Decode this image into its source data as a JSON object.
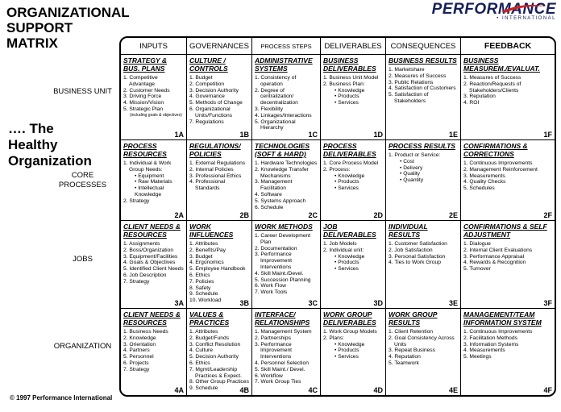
{
  "header": {
    "title_lines": [
      "ORGANIZATIONAL",
      "SUPPORT",
      "MATRIX"
    ],
    "subtitle_lines": [
      "…. The",
      "Healthy",
      "Organization"
    ],
    "logo": "PERFORMANCE",
    "logo_sub": "INTERNATIONAL",
    "copyright": "© 1997  Performance International"
  },
  "columns": [
    "INPUTS",
    "GOVERNANCES",
    "PROCESS STEPS",
    "DELIVERABLES",
    "CONSEQUENCES",
    "FEEDBACK"
  ],
  "rows": [
    {
      "label": "BUSINESS UNIT",
      "cells": [
        {
          "title": "STRATEGY & BUS. PLANS",
          "code": "1A",
          "items": [
            "1. Competitive Advantage",
            "2. Customer Needs",
            "3. Driving Force",
            "4. Mission/Vision",
            {
              "text": "5. Strategic Plan",
              "note": "(including goals & objectives)"
            }
          ]
        },
        {
          "title": "CULTURE / CONTROLS",
          "code": "1B",
          "items": [
            "1. Budget",
            "2. Competition",
            "3. Decision Authority",
            "4. Governance",
            "5. Methods of Change",
            "6. Organizational Units/Functions",
            "7. Regulations"
          ]
        },
        {
          "title": "ADMINISTRATIVE SYSTEMS",
          "code": "1C",
          "items": [
            "1. Consistency of operation",
            "2. Degree of centralization/ decentralization",
            "3. Flexibility",
            "4. Linkages/Interactions",
            "5. Organizational Hierarchy"
          ]
        },
        {
          "title": "BUSINESS DELIVERABLES",
          "code": "1D",
          "items": [
            "1. Business Unit Model",
            {
              "text": "2. Business Plan:",
              "sub": [
                "Knowledge",
                "Products",
                "Services"
              ]
            }
          ]
        },
        {
          "title": "BUSINESS RESULTS",
          "code": "1E",
          "items": [
            "1. Marketshare",
            "2. Measures of Success",
            "3. Public Relations",
            "4. Satisfaction of Customers",
            "5. Satisfaction of Stakeholders"
          ]
        },
        {
          "title": "BUSINESS MEASUREM./EVALUAT.",
          "code": "1F",
          "items": [
            "1. Measures of Success",
            "2. Reaction/Requests of Stakeholders/Clients",
            "3. Reputation",
            "4. ROI"
          ]
        }
      ]
    },
    {
      "label": "CORE PROCESSES",
      "cells": [
        {
          "title": "PROCESS RESOURCES",
          "code": "2A",
          "items": [
            {
              "text": "1. Individual & Work Group Needs:",
              "sub": [
                "Equipment",
                "Raw Materials",
                "Intellectual Knowledge"
              ]
            },
            "2. Strategy"
          ]
        },
        {
          "title": "REGULATIONS/ POLICIES",
          "code": "2B",
          "items": [
            "1. External Regulations",
            "2. Internal Policies",
            "3. Professional Ethics",
            "4. Professional Standards"
          ]
        },
        {
          "title": "TECHNOLOGIES (SOFT & HARD)",
          "code": "2C",
          "items": [
            "1. Hardware Technologies",
            "2. Knowledge Transfer Mechanisms",
            "3. Management Facilitation",
            "4. Software",
            "5. Systems Approach",
            "6. Schedule"
          ]
        },
        {
          "title": "PROCESS DELIVERABLES",
          "code": "2D",
          "items": [
            "1. Core Process Model",
            {
              "text": "2. Process:",
              "sub": [
                "Knowledge",
                "Products",
                "Services"
              ]
            }
          ]
        },
        {
          "title": "PROCESS RESULTS",
          "code": "2E",
          "items": [
            {
              "text": "1. Product or Service:",
              "sub": [
                "Cost",
                "Delivery",
                "Quality",
                "Quantity"
              ]
            }
          ]
        },
        {
          "title": "CONFIRMATIONS & CORRECTIONS",
          "code": "2F",
          "items": [
            "1. Continuous Improvements",
            "2. Management Reinforcement",
            "3. Measurements",
            "4. Quality Checks",
            "5. Schedules"
          ]
        }
      ]
    },
    {
      "label": "JOBS",
      "cells": [
        {
          "title": "CLIENT NEEDS & RESOURCES",
          "code": "3A",
          "items": [
            "1. Assignments",
            "2. Boss/Organization",
            "3. Equipment/Facilities",
            "4. Goals & Objectives",
            "5. Identified Client Needs",
            "6. Job Description",
            "7. Strategy"
          ]
        },
        {
          "title": "WORK INFLUENCES",
          "code": "3B",
          "items": [
            "1. Attributes",
            "2. Benefits/Pay",
            "3. Budget",
            "4. Ergonomics",
            "5. Employee Handbook",
            "6. Ethics",
            "7. Policies",
            "8. Safety",
            "9. Schedule",
            "10. Workload"
          ]
        },
        {
          "title": "WORK METHODS",
          "code": "3C",
          "items": [
            "1. Career Development Plan",
            "2. Documentation",
            "3. Performance Improvement Interventions",
            "4. Skill Maint./Devel.",
            "5. Succession Planning",
            "6. Work Flow",
            "7. Work Tools"
          ]
        },
        {
          "title": "JOB DELIVERABLES",
          "code": "3D",
          "items": [
            "1. Job Models",
            {
              "text": "2. Individual unit:",
              "sub": [
                "Knowledge",
                "Products",
                "Services"
              ]
            }
          ]
        },
        {
          "title": "INDIVIDUAL RESULTS",
          "code": "3E",
          "items": [
            "1. Customer Satisfaction",
            "2. Job Satisfaction",
            "3. Personal Satisfaction",
            "4. Ties to Work Group"
          ]
        },
        {
          "title": "CONFIRMATIONS & SELF ADJUSTMENT",
          "code": "3F",
          "items": [
            "1. Dialogue",
            "2. Internal Client Evaluations",
            "3. Performance Appraisal",
            "4. Rewards & Recognition",
            "5. Turnover"
          ]
        }
      ]
    },
    {
      "label": "ORGANIZATION",
      "cells": [
        {
          "title": "CLIENT NEEDS & RESOURCES",
          "code": "4A",
          "items": [
            "1. Business Needs",
            "2. Knowledge",
            "3. Orientation",
            "4. Partners",
            "5. Personnel",
            "6. Projects",
            "7. Strategy"
          ]
        },
        {
          "title": "VALUES & PRACTICES",
          "code": "4B",
          "items": [
            "1. Attributes",
            "2. Budget/Funds",
            "3. Conflict Resolution",
            "4. Culture",
            "5. Decision Authority",
            "6. Ethics",
            "7. Mgmt/Leadership Practices & Expect.",
            "8. Other Group Practices",
            "9. Schedule"
          ]
        },
        {
          "title": "INTERFACE/ RELATIONSHIPS",
          "code": "4C",
          "items": [
            "1. Management System",
            "2. Partnerships",
            "3. Performance Improvement Interventions",
            "4. Personnel Selection",
            "5. Skill Maint./ Devel.",
            "6. Workflow",
            "7. Work Group Ties"
          ]
        },
        {
          "title": "WORK GROUP DELIVERABLES",
          "code": "4D",
          "items": [
            "1. Work Group Models",
            {
              "text": "2. Plans:",
              "sub": [
                "Knowledge",
                "Products",
                "Services"
              ]
            }
          ]
        },
        {
          "title": "WORK GROUP RESULTS",
          "code": "4E",
          "items": [
            "1. Client Retention",
            "2. Goal Consistency Across Units",
            "3. Repeat Business",
            "4. Reputation",
            "5. Teamwork"
          ]
        },
        {
          "title": "MANAGEMENT/TEAM INFORMATION SYSTEM",
          "code": "4F",
          "items": [
            "1. Continuous Improvements",
            "2. Facilitation Methods",
            "3. Information Systems",
            "4. Measurements",
            "5. Meetings"
          ]
        }
      ]
    }
  ]
}
